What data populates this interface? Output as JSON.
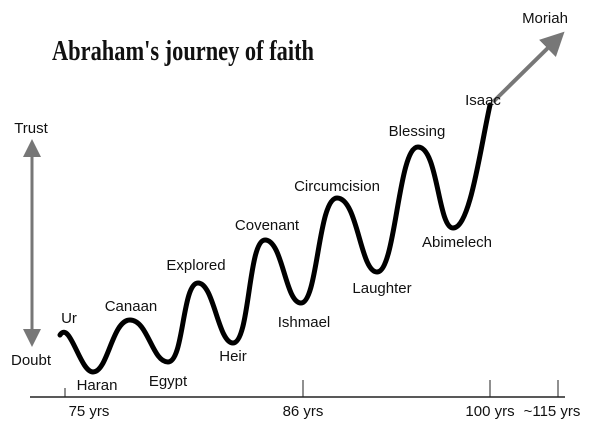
{
  "title": "Abraham's journey of faith",
  "scale": {
    "top": "Trust",
    "bottom": "Doubt"
  },
  "milestones": [
    "Ur",
    "Haran",
    "Canaan",
    "Egypt",
    "Explored",
    "Heir",
    "Covenant",
    "Ishmael",
    "Circumcision",
    "Laughter",
    "Blessing",
    "Abimelech",
    "Isaac",
    "Moriah"
  ],
  "timeline": [
    "75 yrs",
    "86 yrs",
    "100 yrs",
    "~115 yrs"
  ]
}
